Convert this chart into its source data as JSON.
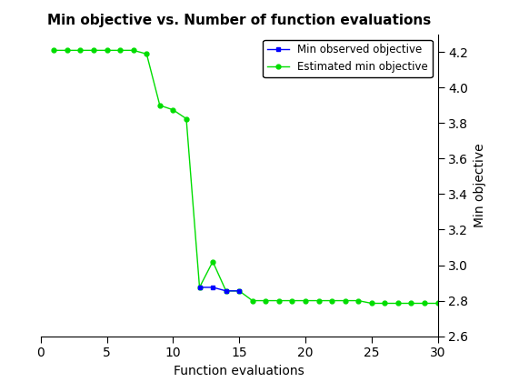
{
  "title": "Min objective vs. Number of function evaluations",
  "xlabel": "Function evaluations",
  "ylabel": "Min objective",
  "xlim": [
    0,
    30
  ],
  "ylim": [
    2.6,
    4.3
  ],
  "yticks": [
    2.6,
    2.8,
    3.0,
    3.2,
    3.4,
    3.6,
    3.8,
    4.0,
    4.2
  ],
  "xticks": [
    0,
    5,
    10,
    15,
    20,
    25,
    30
  ],
  "blue_x": [
    12,
    13,
    14,
    15
  ],
  "blue_y": [
    2.875,
    2.875,
    2.855,
    2.855
  ],
  "green_x": [
    1,
    2,
    3,
    4,
    5,
    6,
    7,
    8,
    9,
    10,
    11,
    12,
    13,
    14,
    15,
    16,
    17,
    18,
    19,
    20,
    21,
    22,
    23,
    24,
    25,
    26,
    27,
    28,
    29,
    30
  ],
  "green_y": [
    4.21,
    4.21,
    4.21,
    4.21,
    4.21,
    4.21,
    4.21,
    4.19,
    3.9,
    3.875,
    3.825,
    2.875,
    3.02,
    2.855,
    2.855,
    2.8,
    2.8,
    2.8,
    2.8,
    2.8,
    2.8,
    2.8,
    2.8,
    2.8,
    2.785,
    2.785,
    2.785,
    2.785,
    2.785,
    2.785
  ],
  "blue_color": "#0000ff",
  "green_color": "#00dd00",
  "legend_labels": [
    "Min observed objective",
    "Estimated min objective"
  ],
  "bg_color": "#ffffff",
  "title_fontsize": 11,
  "axis_fontsize": 10,
  "tick_fontsize": 10
}
